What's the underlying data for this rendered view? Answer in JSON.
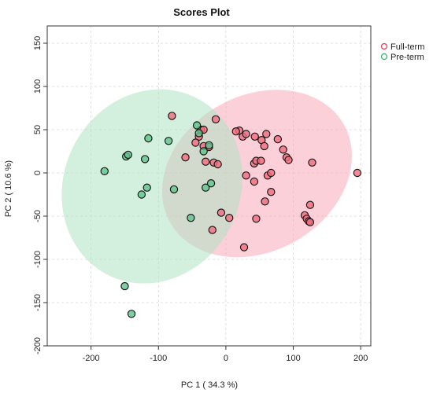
{
  "chart_data": {
    "type": "scatter",
    "title": "Scores Plot",
    "xlabel": "PC 1 ( 34.3 %)",
    "ylabel": "PC 2 ( 10.6 %)",
    "xlim": [
      -265,
      215
    ],
    "ylim": [
      -200,
      170
    ],
    "xticks": [
      -200,
      -100,
      0,
      100,
      200
    ],
    "yticks": [
      -200,
      -150,
      -100,
      -50,
      0,
      50,
      100,
      150
    ],
    "xtick_labels": [
      "-200",
      "-100",
      "0",
      "100",
      "200"
    ],
    "ytick_labels": [
      "-200",
      "-150",
      "-100",
      "-50",
      "0",
      "50",
      "100",
      "150"
    ],
    "grid": true,
    "legend_position": "top-right",
    "series": [
      {
        "name": "Full-term",
        "color": "#e8354f",
        "fill": "#f26b7d",
        "ellipse_fill": "#f7a9b8",
        "points": [
          [
            -80,
            66
          ],
          [
            -40,
            42
          ],
          [
            -37,
            50
          ],
          [
            -33,
            50
          ],
          [
            -45,
            35
          ],
          [
            -60,
            18
          ],
          [
            -33,
            31
          ],
          [
            -25,
            30
          ],
          [
            -30,
            13
          ],
          [
            -18,
            12
          ],
          [
            -12,
            10
          ],
          [
            -15,
            62
          ],
          [
            -20,
            -66
          ],
          [
            -7,
            -46
          ],
          [
            5,
            -52
          ],
          [
            20,
            49
          ],
          [
            15,
            48
          ],
          [
            25,
            42
          ],
          [
            30,
            45
          ],
          [
            43,
            42
          ],
          [
            53,
            38
          ],
          [
            60,
            45
          ],
          [
            57,
            31
          ],
          [
            77,
            39
          ],
          [
            85,
            27
          ],
          [
            90,
            18
          ],
          [
            93,
            15
          ],
          [
            128,
            12
          ],
          [
            42,
            11
          ],
          [
            45,
            14
          ],
          [
            52,
            14
          ],
          [
            30,
            -3
          ],
          [
            42,
            -10
          ],
          [
            62,
            -3
          ],
          [
            67,
            0
          ],
          [
            67,
            -22
          ],
          [
            58,
            -33
          ],
          [
            45,
            -53
          ],
          [
            27,
            -86
          ],
          [
            117,
            -49
          ],
          [
            120,
            -53
          ],
          [
            123,
            -56
          ],
          [
            125,
            -57
          ],
          [
            125,
            -37
          ],
          [
            195,
            0
          ]
        ]
      },
      {
        "name": "Pre-term",
        "color": "#2fb36a",
        "fill": "#5cc48a",
        "ellipse_fill": "#aee1c2",
        "points": [
          [
            -180,
            2
          ],
          [
            -148,
            19
          ],
          [
            -145,
            21
          ],
          [
            -120,
            16
          ],
          [
            -115,
            40
          ],
          [
            -117,
            -17
          ],
          [
            -125,
            -25
          ],
          [
            -85,
            37
          ],
          [
            -77,
            -19
          ],
          [
            -52,
            -52
          ],
          [
            -43,
            55
          ],
          [
            -40,
            46
          ],
          [
            -33,
            25
          ],
          [
            -25,
            32
          ],
          [
            -30,
            -17
          ],
          [
            -22,
            -12
          ],
          [
            -150,
            -131
          ],
          [
            -140,
            -163
          ]
        ]
      }
    ],
    "ellipses": [
      {
        "series": "Full-term",
        "cx": 46.2,
        "cy": -0.7,
        "rx": 148,
        "ry": 90,
        "rotate_deg": -29.7
      },
      {
        "series": "Pre-term",
        "cx": -109.5,
        "cy": -15.6,
        "rx": 147,
        "ry": 102,
        "rotate_deg": -64.9
      }
    ]
  }
}
